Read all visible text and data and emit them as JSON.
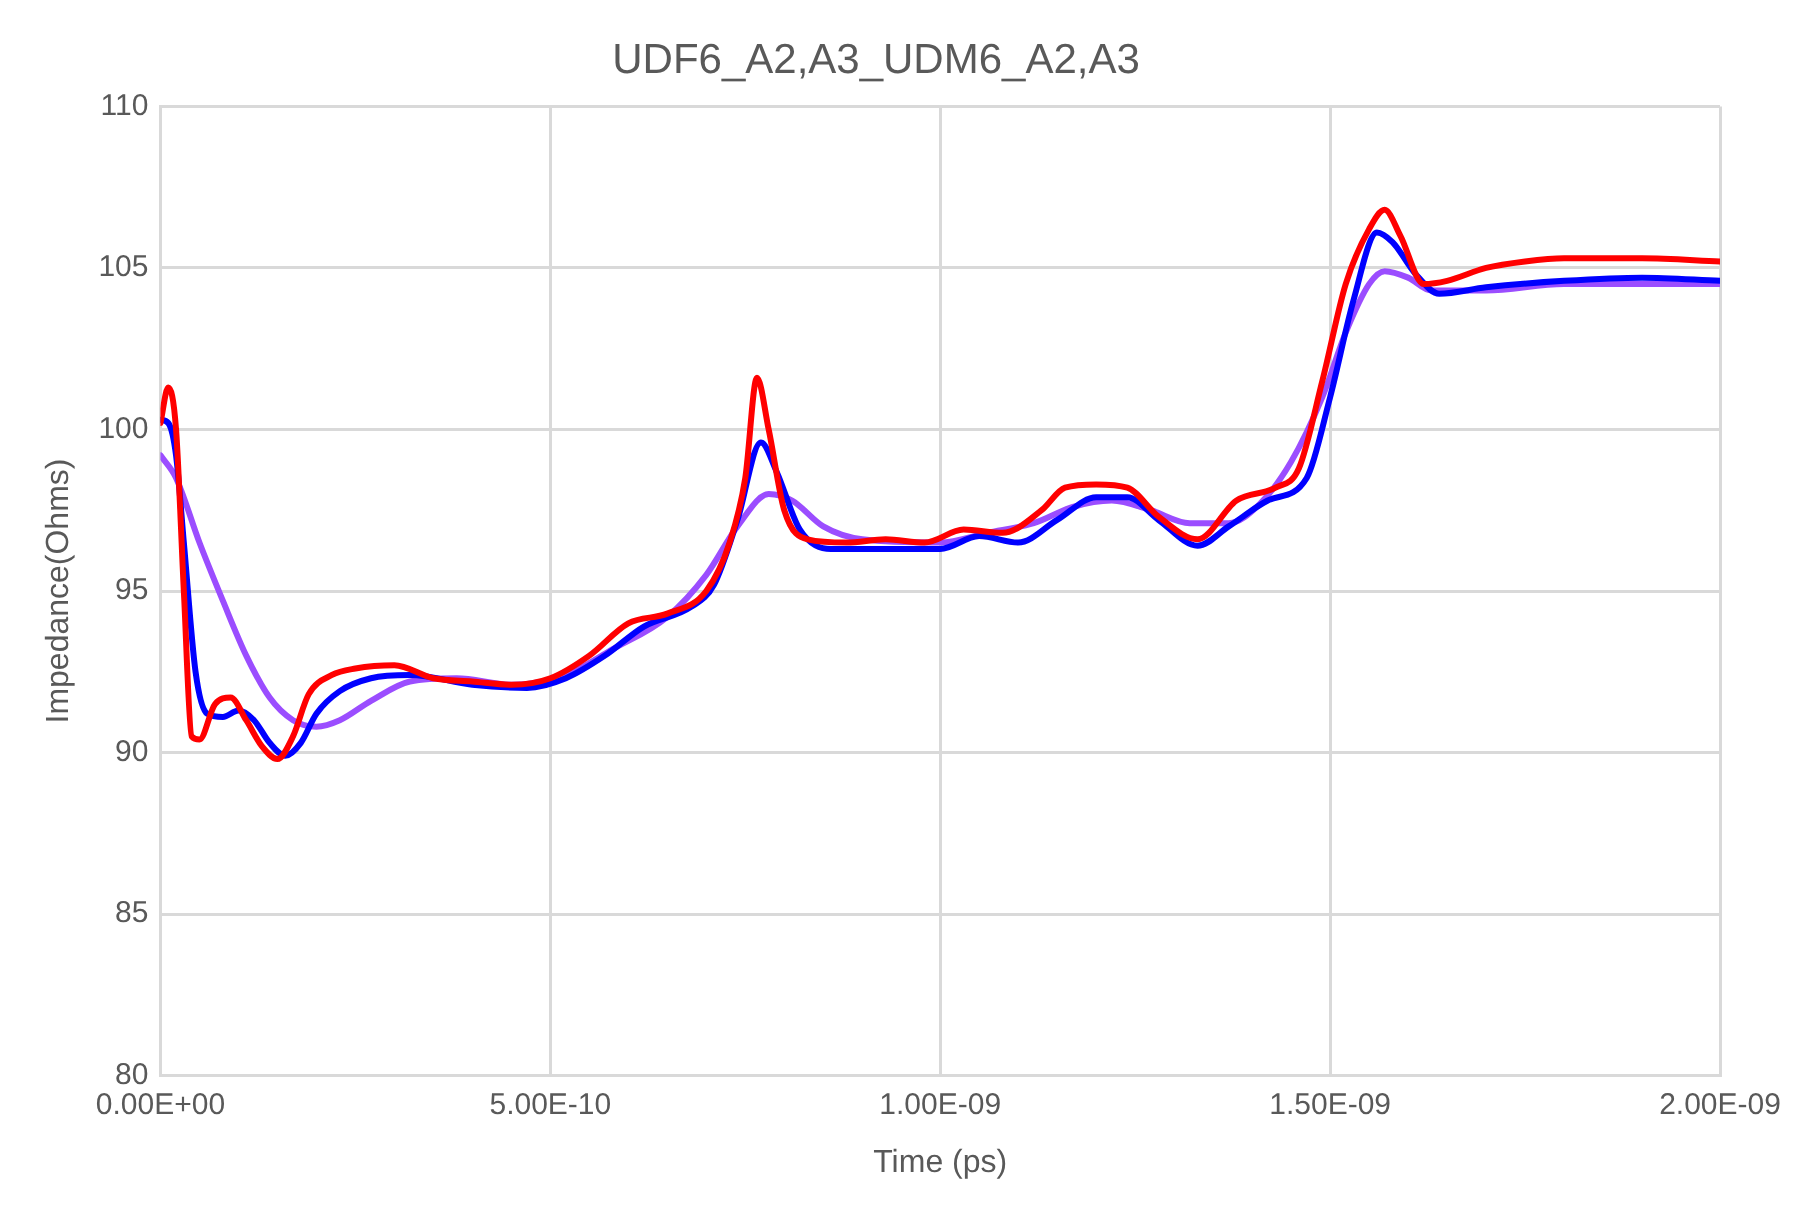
{
  "chart_data": {
    "type": "line",
    "title": "UDF6_A2,A3_UDM6_A2,A3",
    "xlabel": "Time (ps)",
    "ylabel": "Impedance(Ohms)",
    "xlim": [
      0,
      2e-09
    ],
    "xticks": [
      {
        "value": 0,
        "label": "0.00E+00"
      },
      {
        "value": 5e-10,
        "label": "5.00E-10"
      },
      {
        "value": 1e-09,
        "label": "1.00E-09"
      },
      {
        "value": 1.5e-09,
        "label": "1.50E-09"
      },
      {
        "value": 2e-09,
        "label": "2.00E-09"
      }
    ],
    "ylim": [
      80,
      110
    ],
    "yticks": [
      80,
      85,
      90,
      95,
      100,
      105,
      110
    ],
    "grid": true,
    "marker": "none",
    "line_style": "solid",
    "series": [
      {
        "color": "#ff0000",
        "x": [
          0,
          1e-11,
          2e-11,
          3e-11,
          4e-11,
          5e-11,
          7e-11,
          9e-11,
          1.1e-10,
          1.3e-10,
          1.5e-10,
          1.7e-10,
          1.9e-10,
          2.2e-10,
          2.5e-10,
          3e-10,
          3.5e-10,
          4e-10,
          4.5e-10,
          5e-10,
          5.5e-10,
          6e-10,
          6.5e-10,
          7e-10,
          7.3e-10,
          7.5e-10,
          7.65e-10,
          7.8e-10,
          8e-10,
          8.3e-10,
          8.8e-10,
          9.3e-10,
          9.8e-10,
          1.03e-09,
          1.08e-09,
          1.13e-09,
          1.16e-09,
          1.2e-09,
          1.24e-09,
          1.28e-09,
          1.33e-09,
          1.38e-09,
          1.43e-09,
          1.46e-09,
          1.49e-09,
          1.52e-09,
          1.55e-09,
          1.57e-09,
          1.59e-09,
          1.62e-09,
          1.65e-09,
          1.7e-09,
          1.75e-09,
          1.8e-09,
          1.9e-09,
          2e-09
        ],
        "values": [
          100.2,
          101.3,
          100,
          95,
          90.5,
          90.4,
          91.5,
          91.7,
          91,
          90.2,
          89.8,
          90.5,
          91.8,
          92.4,
          92.6,
          92.7,
          92.3,
          92.2,
          92.1,
          92.3,
          93,
          94,
          94.3,
          95,
          96.5,
          98.5,
          101.6,
          100,
          97.5,
          96.6,
          96.5,
          96.6,
          96.5,
          96.9,
          96.8,
          97.5,
          98.2,
          98.3,
          98.2,
          97.3,
          96.6,
          97.8,
          98.2,
          98.8,
          101.5,
          104.5,
          106.2,
          106.8,
          106,
          104.5,
          104.6,
          105,
          105.2,
          105.3,
          105.3,
          105.2
        ]
      },
      {
        "color": "#0000ff",
        "x": [
          0,
          1e-11,
          2e-11,
          3e-11,
          4.5e-11,
          6e-11,
          8e-11,
          1e-10,
          1.2e-10,
          1.4e-10,
          1.6e-10,
          1.8e-10,
          2e-10,
          2.3e-10,
          2.7e-10,
          3.2e-10,
          4e-10,
          4.7e-10,
          5.2e-10,
          5.7e-10,
          6.2e-10,
          6.8e-10,
          7.1e-10,
          7.4e-10,
          7.7e-10,
          7.9e-10,
          8.2e-10,
          8.6e-10,
          9.2e-10,
          1e-09,
          1.05e-09,
          1.1e-09,
          1.15e-09,
          1.2e-09,
          1.24e-09,
          1.28e-09,
          1.33e-09,
          1.37e-09,
          1.42e-09,
          1.47e-09,
          1.5e-09,
          1.53e-09,
          1.56e-09,
          1.58e-09,
          1.61e-09,
          1.64e-09,
          1.7e-09,
          1.8e-09,
          1.9e-09,
          2e-09
        ],
        "values": [
          100.3,
          100.2,
          99.2,
          96.5,
          92.5,
          91.2,
          91.1,
          91.3,
          91,
          90.3,
          89.9,
          90.3,
          91.2,
          91.9,
          92.3,
          92.4,
          92.1,
          92,
          92.3,
          93,
          93.9,
          94.5,
          95.2,
          97.2,
          99.6,
          98.7,
          96.9,
          96.3,
          96.3,
          96.3,
          96.7,
          96.5,
          97.2,
          97.9,
          97.9,
          97.2,
          96.4,
          97,
          97.8,
          98.5,
          101,
          104,
          106.1,
          105.8,
          104.8,
          104.2,
          104.4,
          104.6,
          104.7,
          104.6
        ]
      },
      {
        "color": "#9b4dff",
        "x": [
          0,
          2e-11,
          5e-11,
          8e-11,
          1.1e-10,
          1.4e-10,
          1.7e-10,
          2e-10,
          2.3e-10,
          2.7e-10,
          3.2e-10,
          3.8e-10,
          4.5e-10,
          5.2e-10,
          5.8e-10,
          6.5e-10,
          7e-10,
          7.4e-10,
          7.8e-10,
          8.1e-10,
          8.5e-10,
          9e-10,
          1e-09,
          1.06e-09,
          1.12e-09,
          1.17e-09,
          1.22e-09,
          1.27e-09,
          1.32e-09,
          1.37e-09,
          1.41e-09,
          1.45e-09,
          1.49e-09,
          1.52e-09,
          1.55e-09,
          1.57e-09,
          1.6e-09,
          1.63e-09,
          1.7e-09,
          1.8e-09,
          1.9e-09,
          2e-09
        ],
        "values": [
          99.2,
          98.5,
          96.5,
          94.7,
          93,
          91.7,
          91,
          90.8,
          91,
          91.6,
          92.2,
          92.3,
          92.1,
          92.4,
          93.2,
          94.2,
          95.5,
          97,
          98,
          97.8,
          97,
          96.6,
          96.5,
          96.8,
          97.1,
          97.6,
          97.8,
          97.5,
          97.1,
          97.1,
          97.7,
          99,
          101,
          103,
          104.5,
          104.9,
          104.7,
          104.3,
          104.3,
          104.5,
          104.5,
          104.5
        ]
      }
    ]
  }
}
